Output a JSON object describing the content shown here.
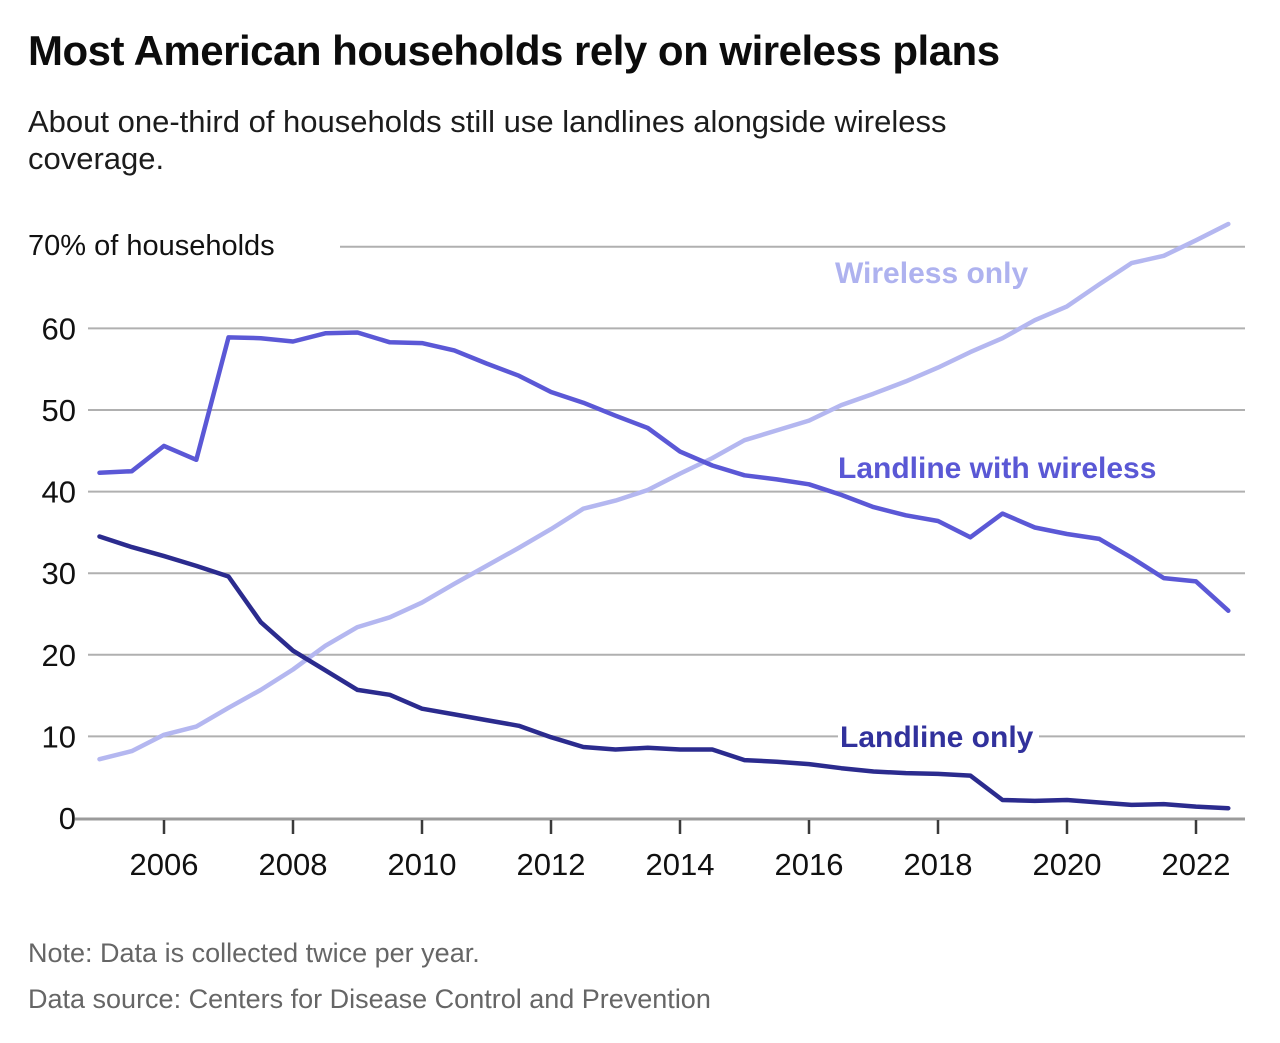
{
  "header": {
    "title": "Most American households rely on wireless plans",
    "subtitle": "About one-third of households still use landlines alongside wireless coverage."
  },
  "notes": {
    "note": "Note: Data is collected twice per year.",
    "source": "Data source: Centers for Disease Control and Prevention"
  },
  "colors": {
    "wireless_only": "#b4b7f0",
    "landline_with_wireless": "#5b58d6",
    "landline_only": "#2b2b8e",
    "gridline": "#b0b0b0",
    "axis_line": "#9b9b9b",
    "tick_mark": "#3a3a3a",
    "tick_text": "#111111"
  },
  "chart_data": {
    "type": "line",
    "title": "Most American households rely on wireless plans",
    "unit": "% of households",
    "y_axis_top_label": "70% of households",
    "xlim": [
      2005,
      2022.5
    ],
    "ylim": [
      0,
      70
    ],
    "grid": true,
    "legend_position": "inline-labels",
    "xticks": [
      2006,
      2008,
      2010,
      2012,
      2014,
      2016,
      2018,
      2020,
      2022
    ],
    "yticks": [
      0,
      10,
      20,
      30,
      40,
      50,
      60
    ],
    "x": [
      2005,
      2005.5,
      2006,
      2006.5,
      2007,
      2007.5,
      2008,
      2008.5,
      2009,
      2009.5,
      2010,
      2010.5,
      2011,
      2011.5,
      2012,
      2012.5,
      2013,
      2013.5,
      2014,
      2014.5,
      2015,
      2015.5,
      2016,
      2016.5,
      2017,
      2017.5,
      2018,
      2018.5,
      2019,
      2019.5,
      2020,
      2020.5,
      2021,
      2021.5,
      2022,
      2022.5
    ],
    "series": [
      {
        "name": "Wireless only",
        "color": "#b4b7f0",
        "values": [
          7.2,
          8.2,
          10.2,
          11.2,
          13.5,
          15.7,
          18.2,
          21.1,
          23.4,
          24.6,
          26.4,
          28.7,
          30.9,
          33.1,
          35.4,
          37.9,
          38.9,
          40.2,
          42.2,
          44.1,
          46.3,
          47.5,
          48.7,
          50.6,
          52.0,
          53.5,
          55.2,
          57.1,
          58.8,
          61.0,
          62.7,
          65.4,
          68.0,
          68.9,
          70.8,
          72.8
        ]
      },
      {
        "name": "Landline with wireless",
        "color": "#5b58d6",
        "values": [
          42.3,
          42.5,
          45.6,
          43.9,
          58.9,
          58.8,
          58.4,
          59.4,
          59.5,
          58.3,
          58.2,
          57.3,
          55.7,
          54.2,
          52.2,
          50.9,
          49.3,
          47.8,
          44.9,
          43.2,
          42.0,
          41.5,
          40.9,
          39.6,
          38.1,
          37.1,
          36.4,
          34.4,
          37.3,
          35.6,
          34.8,
          34.2,
          31.9,
          29.4,
          29.0,
          25.4
        ]
      },
      {
        "name": "Landline only",
        "color": "#2b2b8e",
        "values": [
          34.5,
          33.2,
          32.1,
          30.9,
          29.6,
          24.0,
          20.5,
          18.1,
          15.7,
          15.1,
          13.4,
          12.7,
          12.0,
          11.3,
          9.9,
          8.7,
          8.4,
          8.6,
          8.4,
          8.4,
          7.1,
          6.9,
          6.6,
          6.1,
          5.7,
          5.5,
          5.4,
          5.2,
          2.2,
          2.1,
          2.2,
          1.9,
          1.6,
          1.7,
          1.4,
          1.2
        ]
      }
    ]
  }
}
